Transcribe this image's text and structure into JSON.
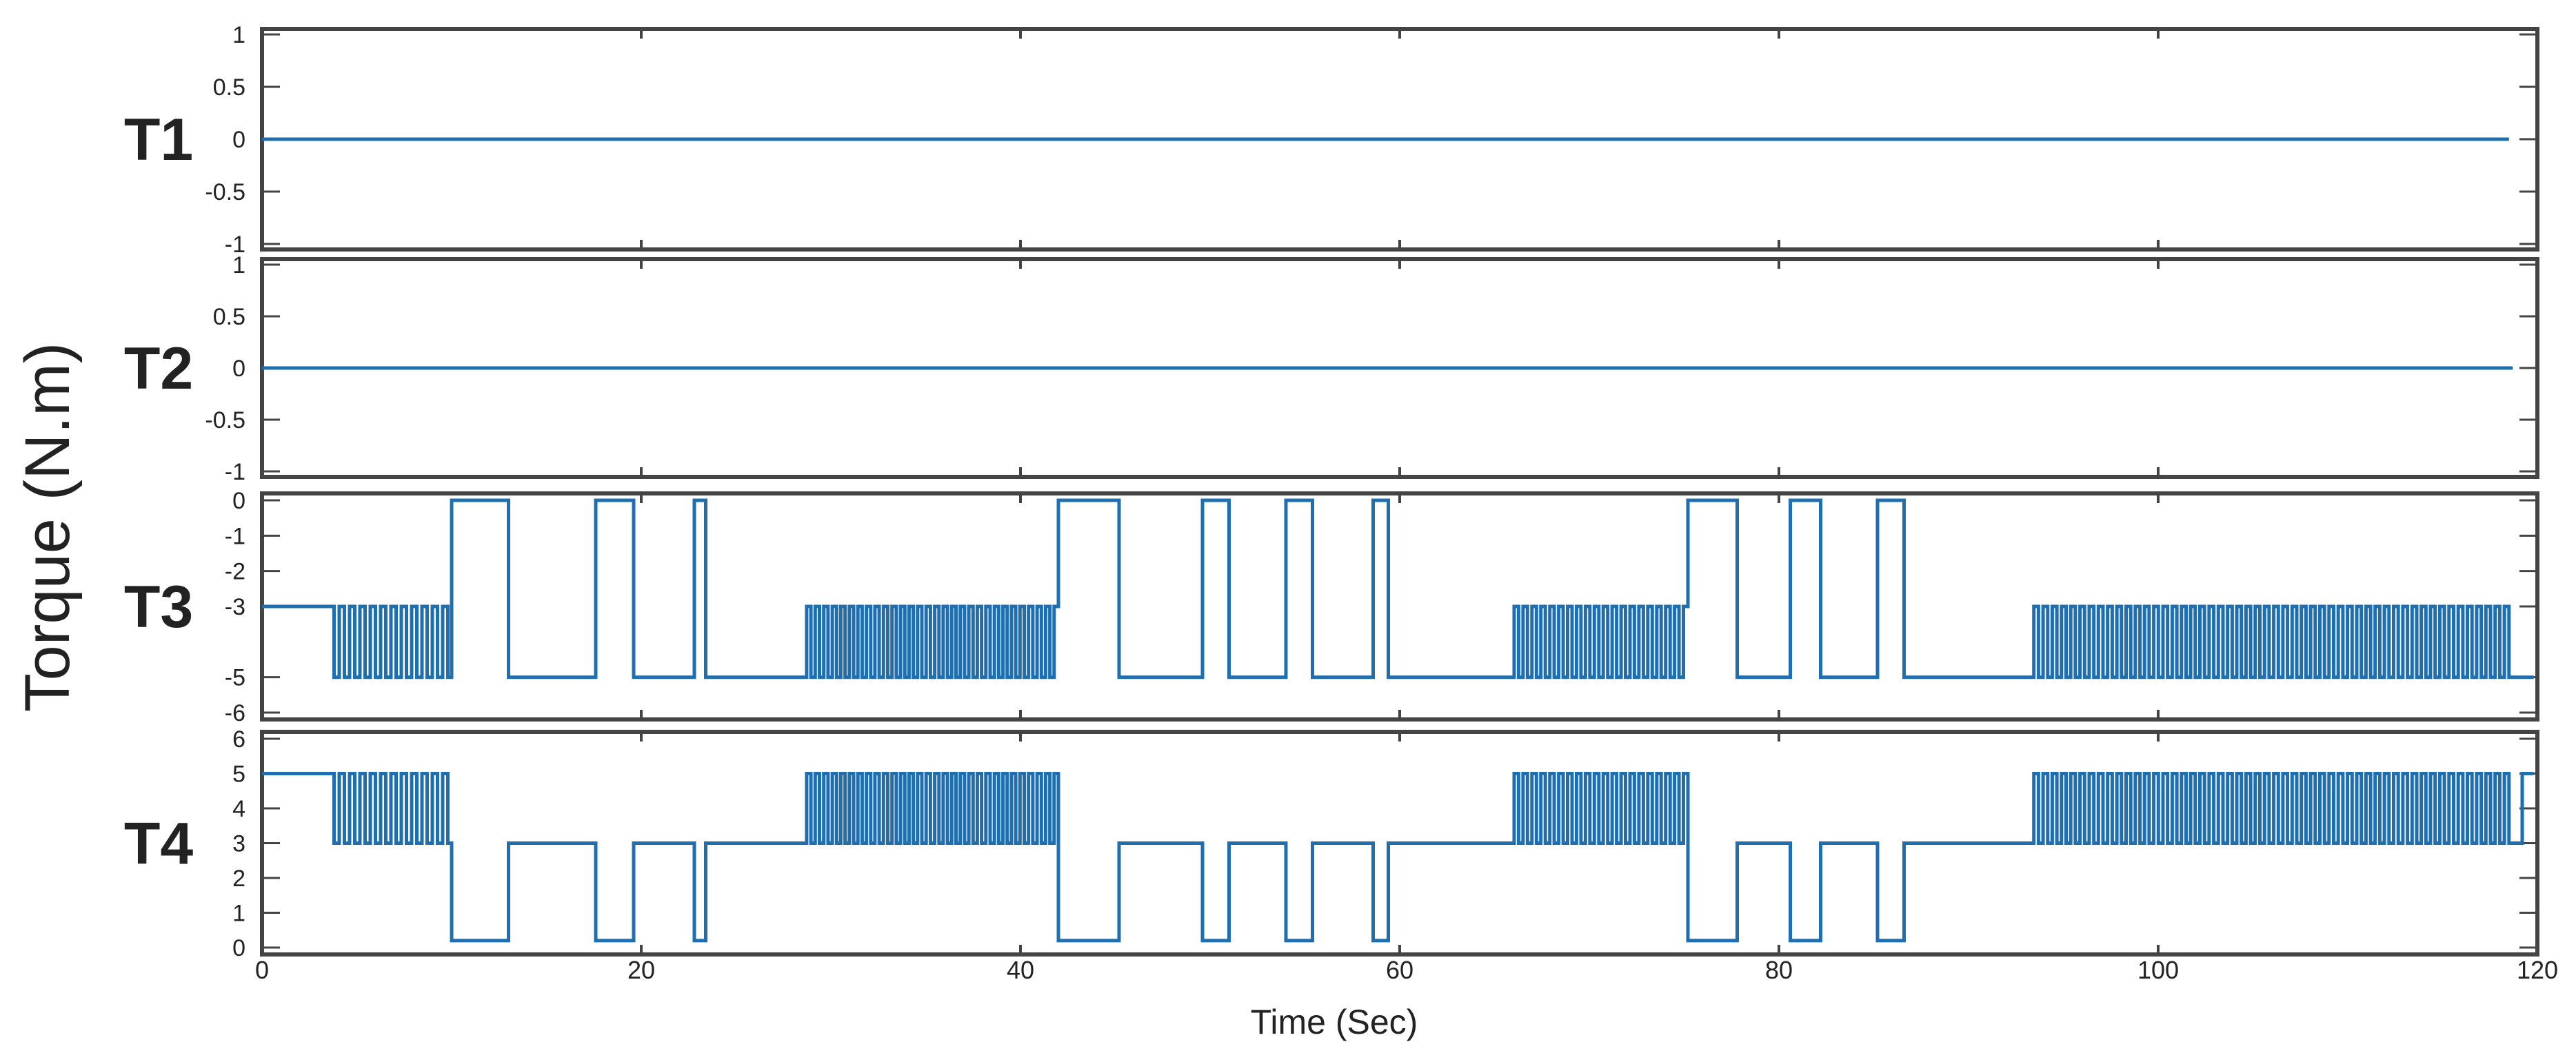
{
  "chart_data": {
    "type": "line",
    "xlabel": "Time (Sec)",
    "ylabel": "Torque (N.m)",
    "xlim": [
      0,
      120
    ],
    "x_ticks": [
      0,
      20,
      40,
      60,
      80,
      100,
      120
    ],
    "x_tick_labels": [
      "0",
      "20",
      "40",
      "60",
      "80",
      "100",
      "120"
    ],
    "series_color": "#1f6fb0",
    "grid": false,
    "panels": [
      {
        "name": "T1",
        "ylim": [
          -1,
          1
        ],
        "yticks": [
          -1,
          -0.5,
          0,
          0.5,
          1
        ],
        "ytick_labels": [
          "-1",
          "-0.5",
          "0",
          "0.5",
          "1"
        ],
        "x": [
          0,
          118.5
        ],
        "y": [
          0,
          0
        ]
      },
      {
        "name": "T2",
        "ylim": [
          -1,
          1
        ],
        "yticks": [
          -1,
          -0.5,
          0,
          0.5,
          1
        ],
        "ytick_labels": [
          "-1",
          "-0.5",
          "0",
          "0.5",
          "1"
        ],
        "x": [
          0,
          118.7
        ],
        "y": [
          0,
          0
        ]
      },
      {
        "name": "T3",
        "ylim": [
          -6,
          0
        ],
        "yticks": [
          0,
          -1,
          -2,
          -3,
          -5,
          -6
        ],
        "ytick_labels": [
          "0",
          "-1",
          "-2",
          "-3",
          "-5",
          "-6"
        ],
        "segments": [
          {
            "kind": "flat",
            "t0": 0,
            "t1": 3.8,
            "v": -3
          },
          {
            "kind": "osc",
            "t0": 3.8,
            "t1": 9.8,
            "hi": -3,
            "lo": -5,
            "n": 11
          },
          {
            "kind": "flat",
            "t0": 9.8,
            "t1": 10.0,
            "v": -5
          },
          {
            "kind": "flat",
            "t0": 10.0,
            "t1": 13.0,
            "v": 0
          },
          {
            "kind": "flat",
            "t0": 13.0,
            "t1": 17.6,
            "v": -5
          },
          {
            "kind": "flat",
            "t0": 17.6,
            "t1": 19.6,
            "v": 0
          },
          {
            "kind": "flat",
            "t0": 19.6,
            "t1": 22.8,
            "v": -5
          },
          {
            "kind": "flat",
            "t0": 22.8,
            "t1": 23.4,
            "v": 0
          },
          {
            "kind": "flat",
            "t0": 23.4,
            "t1": 28.5,
            "v": -5
          },
          {
            "kind": "osc",
            "t0": 28.5,
            "t1": 42.0,
            "hi": -3,
            "lo": -5,
            "n": 30
          },
          {
            "kind": "flat",
            "t0": 42.0,
            "t1": 45.2,
            "v": 0
          },
          {
            "kind": "flat",
            "t0": 45.2,
            "t1": 49.6,
            "v": -5
          },
          {
            "kind": "flat",
            "t0": 49.6,
            "t1": 51.0,
            "v": 0
          },
          {
            "kind": "flat",
            "t0": 51.0,
            "t1": 54.0,
            "v": -5
          },
          {
            "kind": "flat",
            "t0": 54.0,
            "t1": 55.4,
            "v": 0
          },
          {
            "kind": "flat",
            "t0": 55.4,
            "t1": 58.6,
            "v": -5
          },
          {
            "kind": "flat",
            "t0": 58.6,
            "t1": 59.4,
            "v": 0
          },
          {
            "kind": "flat",
            "t0": 59.4,
            "t1": 65.8,
            "v": -5
          },
          {
            "kind": "osc",
            "t0": 65.8,
            "t1": 75.2,
            "hi": -3,
            "lo": -5,
            "n": 20
          },
          {
            "kind": "flat",
            "t0": 75.2,
            "t1": 77.8,
            "v": 0
          },
          {
            "kind": "flat",
            "t0": 77.8,
            "t1": 80.6,
            "v": -5
          },
          {
            "kind": "flat",
            "t0": 80.6,
            "t1": 82.2,
            "v": 0
          },
          {
            "kind": "flat",
            "t0": 82.2,
            "t1": 85.2,
            "v": -5
          },
          {
            "kind": "flat",
            "t0": 85.2,
            "t1": 86.6,
            "v": 0
          },
          {
            "kind": "flat",
            "t0": 86.6,
            "t1": 93.2,
            "v": -5
          },
          {
            "kind": "osc",
            "t0": 93.2,
            "t1": 118.5,
            "hi": -3,
            "lo": -5,
            "n": 52
          },
          {
            "kind": "flat",
            "t0": 118.5,
            "t1": 119.8,
            "v": -5
          }
        ]
      },
      {
        "name": "T4",
        "ylim": [
          0,
          6
        ],
        "yticks": [
          0,
          1,
          2,
          3,
          4,
          5,
          6
        ],
        "ytick_labels": [
          "0",
          "1",
          "2",
          "3",
          "4",
          "5",
          "6"
        ],
        "segments": [
          {
            "kind": "flat",
            "t0": 0,
            "t1": 3.8,
            "v": 5
          },
          {
            "kind": "osc",
            "t0": 3.8,
            "t1": 9.8,
            "hi": 5,
            "lo": 3,
            "n": 11
          },
          {
            "kind": "flat",
            "t0": 9.8,
            "t1": 10.0,
            "v": 3
          },
          {
            "kind": "flat",
            "t0": 10.0,
            "t1": 13.0,
            "v": 0.2
          },
          {
            "kind": "flat",
            "t0": 13.0,
            "t1": 17.6,
            "v": 3
          },
          {
            "kind": "flat",
            "t0": 17.6,
            "t1": 19.6,
            "v": 0.2
          },
          {
            "kind": "flat",
            "t0": 19.6,
            "t1": 22.8,
            "v": 3
          },
          {
            "kind": "flat",
            "t0": 22.8,
            "t1": 23.4,
            "v": 0.2
          },
          {
            "kind": "flat",
            "t0": 23.4,
            "t1": 28.5,
            "v": 3
          },
          {
            "kind": "osc",
            "t0": 28.5,
            "t1": 42.0,
            "hi": 5,
            "lo": 3,
            "n": 30
          },
          {
            "kind": "flat",
            "t0": 42.0,
            "t1": 45.2,
            "v": 0.2
          },
          {
            "kind": "flat",
            "t0": 45.2,
            "t1": 49.6,
            "v": 3
          },
          {
            "kind": "flat",
            "t0": 49.6,
            "t1": 51.0,
            "v": 0.2
          },
          {
            "kind": "flat",
            "t0": 51.0,
            "t1": 54.0,
            "v": 3
          },
          {
            "kind": "flat",
            "t0": 54.0,
            "t1": 55.4,
            "v": 0.2
          },
          {
            "kind": "flat",
            "t0": 55.4,
            "t1": 58.6,
            "v": 3
          },
          {
            "kind": "flat",
            "t0": 58.6,
            "t1": 59.4,
            "v": 0.2
          },
          {
            "kind": "flat",
            "t0": 59.4,
            "t1": 65.8,
            "v": 3
          },
          {
            "kind": "osc",
            "t0": 65.8,
            "t1": 75.2,
            "hi": 5,
            "lo": 3,
            "n": 20
          },
          {
            "kind": "flat",
            "t0": 75.2,
            "t1": 77.8,
            "v": 0.2
          },
          {
            "kind": "flat",
            "t0": 77.8,
            "t1": 80.6,
            "v": 3
          },
          {
            "kind": "flat",
            "t0": 80.6,
            "t1": 82.2,
            "v": 0.2
          },
          {
            "kind": "flat",
            "t0": 82.2,
            "t1": 85.2,
            "v": 3
          },
          {
            "kind": "flat",
            "t0": 85.2,
            "t1": 86.6,
            "v": 0.2
          },
          {
            "kind": "flat",
            "t0": 86.6,
            "t1": 93.2,
            "v": 3
          },
          {
            "kind": "osc",
            "t0": 93.2,
            "t1": 118.5,
            "hi": 5,
            "lo": 3,
            "n": 52
          },
          {
            "kind": "flat",
            "t0": 118.5,
            "t1": 119.2,
            "v": 3
          },
          {
            "kind": "flat",
            "t0": 119.2,
            "t1": 119.8,
            "v": 5
          }
        ]
      }
    ]
  }
}
